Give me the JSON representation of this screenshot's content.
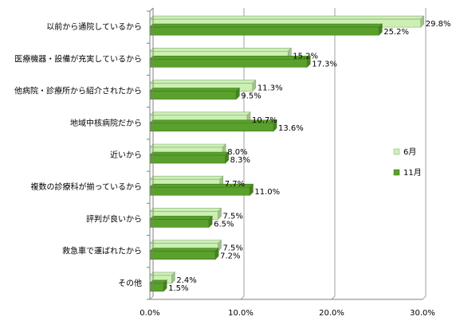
{
  "chart_data": {
    "type": "bar",
    "orientation": "horizontal",
    "categories": [
      "以前から通院しているから",
      "医療機器・設備が充実しているから",
      "他病院・診療所から紹介されたから",
      "地域中核病院だから",
      "近いから",
      "複数の診療科が揃っているから",
      "評判が良いから",
      "救急車で運ばれたから",
      "その他"
    ],
    "series": [
      {
        "name": "6月",
        "values": [
          29.8,
          15.2,
          11.3,
          10.7,
          8.0,
          7.7,
          7.5,
          7.5,
          2.4
        ],
        "labels": [
          "29.8%",
          "15.2%",
          "11.3%",
          "10.7%",
          "8.0%",
          "7.7%",
          "7.5%",
          "7.5%",
          "2.4%"
        ],
        "color": "#ccf0b4",
        "stroke": "#8aa878"
      },
      {
        "name": "11月",
        "values": [
          25.2,
          17.3,
          9.5,
          13.6,
          8.3,
          11.0,
          6.5,
          7.2,
          1.5
        ],
        "labels": [
          "25.2%",
          "17.3%",
          "9.5%",
          "13.6%",
          "8.3%",
          "11.0%",
          "6.5%",
          "7.2%",
          "1.5%"
        ],
        "color": "#5aa02c",
        "stroke": "#3d7a1a"
      }
    ],
    "xlim": [
      0,
      30
    ],
    "xticks": [
      0,
      10,
      20,
      30
    ],
    "xtick_labels": [
      "0.0%",
      "10.0%",
      "20.0%",
      "30.0%"
    ],
    "grid": true,
    "legend": "right"
  }
}
